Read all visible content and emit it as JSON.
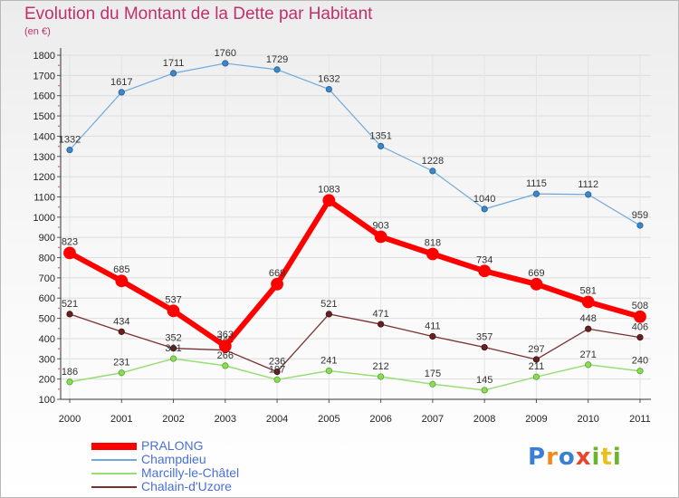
{
  "title": "Evolution du Montant de la Dette par Habitant",
  "subtitle": "(en €)",
  "logo": "Proxiti",
  "chart_data": {
    "type": "line",
    "x": [
      "2000",
      "2001",
      "2002",
      "2003",
      "2004",
      "2005",
      "2006",
      "2007",
      "2008",
      "2009",
      "2010",
      "2011"
    ],
    "ylim": [
      100,
      1800
    ],
    "yticks": [
      100,
      200,
      300,
      400,
      500,
      600,
      700,
      800,
      900,
      1000,
      1100,
      1200,
      1300,
      1400,
      1500,
      1600,
      1700,
      1800
    ],
    "grid": true,
    "legend_position": "bottom-left",
    "series": [
      {
        "name": "PRALONG",
        "color": "#ff0000",
        "values": [
          823,
          685,
          537,
          363,
          669,
          1083,
          903,
          818,
          734,
          669,
          581,
          508
        ]
      },
      {
        "name": "Champdieu",
        "color": "#6fa8dc",
        "values": [
          1332,
          1617,
          1711,
          1760,
          1729,
          1632,
          1351,
          1228,
          1040,
          1115,
          1112,
          959
        ]
      },
      {
        "name": "Marcilly-le-Châtel",
        "color": "#99dd77",
        "values": [
          186,
          231,
          301,
          266,
          197,
          241,
          212,
          175,
          145,
          211,
          271,
          240
        ]
      },
      {
        "name": "Chalain-d'Uzore",
        "color": "#7a3030",
        "values": [
          521,
          434,
          352,
          343,
          236,
          521,
          471,
          411,
          357,
          297,
          448,
          406
        ]
      }
    ]
  }
}
